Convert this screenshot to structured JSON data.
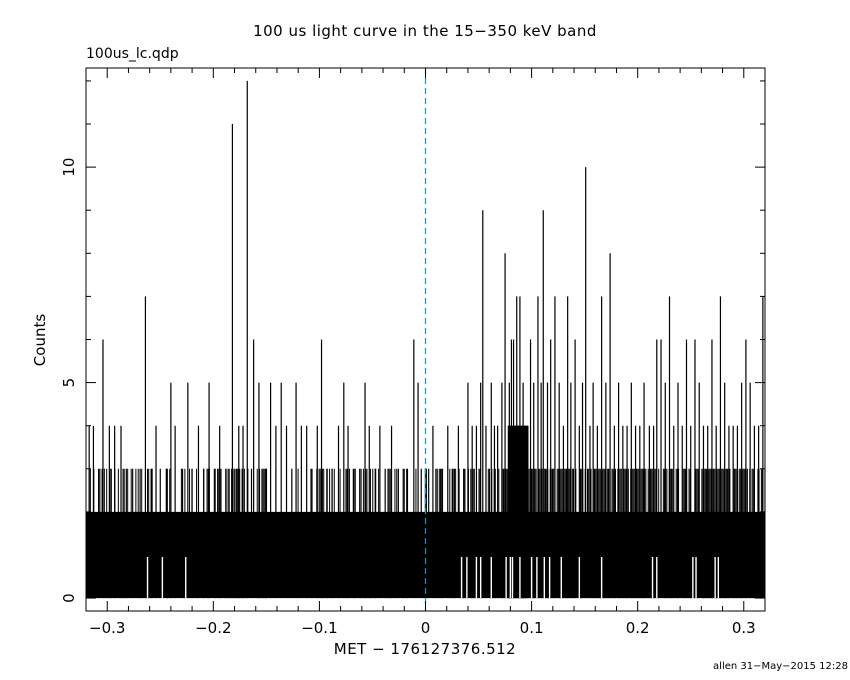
{
  "header": {
    "title": "100 us light curve in the 15−350 keV band",
    "file_label": "100us_lc.qdp"
  },
  "footer": {
    "credit": "allen 31−May−2015 12:28"
  },
  "colors": {
    "data": "#000000",
    "trigger_line": "#1a8fd6",
    "frame": "#000000"
  },
  "chart_data": {
    "type": "histogram",
    "title": "100 us light curve in the 15−350 keV band",
    "xlabel": "MET − 176127376.512",
    "ylabel": "Counts",
    "xlim": [
      -0.32,
      0.32
    ],
    "ylim": [
      -0.3,
      12.3
    ],
    "x_ticks": [
      -0.3,
      -0.2,
      -0.1,
      0,
      0.1,
      0.2,
      0.3
    ],
    "x_tick_labels": [
      "−0.3",
      "−0.2",
      "−0.1",
      "0",
      "0.1",
      "0.2",
      "0.3"
    ],
    "y_ticks": [
      0,
      5,
      10
    ],
    "y_tick_labels": [
      "0",
      "5",
      "10"
    ],
    "bin_width": 0.0001,
    "trigger_line_x": 0,
    "peaks": [
      {
        "x": -0.317,
        "y": 4
      },
      {
        "x": -0.313,
        "y": 4
      },
      {
        "x": -0.307,
        "y": 3
      },
      {
        "x": -0.304,
        "y": 6
      },
      {
        "x": -0.298,
        "y": 4
      },
      {
        "x": -0.293,
        "y": 4
      },
      {
        "x": -0.287,
        "y": 4
      },
      {
        "x": -0.282,
        "y": 3
      },
      {
        "x": -0.276,
        "y": 3
      },
      {
        "x": -0.269,
        "y": 3
      },
      {
        "x": -0.264,
        "y": 7
      },
      {
        "x": -0.258,
        "y": 3
      },
      {
        "x": -0.254,
        "y": 4
      },
      {
        "x": -0.25,
        "y": 3
      },
      {
        "x": -0.244,
        "y": 3
      },
      {
        "x": -0.24,
        "y": 5
      },
      {
        "x": -0.236,
        "y": 4
      },
      {
        "x": -0.229,
        "y": 3
      },
      {
        "x": -0.224,
        "y": 5
      },
      {
        "x": -0.22,
        "y": 3
      },
      {
        "x": -0.214,
        "y": 4
      },
      {
        "x": -0.209,
        "y": 3
      },
      {
        "x": -0.204,
        "y": 5
      },
      {
        "x": -0.199,
        "y": 3
      },
      {
        "x": -0.194,
        "y": 4
      },
      {
        "x": -0.188,
        "y": 3
      },
      {
        "x": -0.182,
        "y": 11
      },
      {
        "x": -0.178,
        "y": 3
      },
      {
        "x": -0.176,
        "y": 4
      },
      {
        "x": -0.172,
        "y": 4
      },
      {
        "x": -0.168,
        "y": 12
      },
      {
        "x": -0.164,
        "y": 3
      },
      {
        "x": -0.162,
        "y": 6
      },
      {
        "x": -0.157,
        "y": 5
      },
      {
        "x": -0.15,
        "y": 3
      },
      {
        "x": -0.146,
        "y": 5
      },
      {
        "x": -0.141,
        "y": 4
      },
      {
        "x": -0.136,
        "y": 5
      },
      {
        "x": -0.131,
        "y": 4
      },
      {
        "x": -0.126,
        "y": 3
      },
      {
        "x": -0.122,
        "y": 5
      },
      {
        "x": -0.117,
        "y": 4
      },
      {
        "x": -0.112,
        "y": 4
      },
      {
        "x": -0.107,
        "y": 3
      },
      {
        "x": -0.102,
        "y": 4
      },
      {
        "x": -0.098,
        "y": 6
      },
      {
        "x": -0.093,
        "y": 3
      },
      {
        "x": -0.088,
        "y": 3
      },
      {
        "x": -0.082,
        "y": 4
      },
      {
        "x": -0.077,
        "y": 5
      },
      {
        "x": -0.073,
        "y": 4
      },
      {
        "x": -0.068,
        "y": 3
      },
      {
        "x": -0.062,
        "y": 3
      },
      {
        "x": -0.057,
        "y": 5
      },
      {
        "x": -0.053,
        "y": 4
      },
      {
        "x": -0.047,
        "y": 3
      },
      {
        "x": -0.043,
        "y": 4
      },
      {
        "x": -0.038,
        "y": 3
      },
      {
        "x": -0.032,
        "y": 4
      },
      {
        "x": -0.027,
        "y": 3
      },
      {
        "x": -0.021,
        "y": 3
      },
      {
        "x": -0.017,
        "y": 3
      },
      {
        "x": -0.011,
        "y": 6
      },
      {
        "x": -0.007,
        "y": 5
      },
      {
        "x": -0.004,
        "y": 3
      },
      {
        "x": 0.003,
        "y": 3
      },
      {
        "x": 0.007,
        "y": 4
      },
      {
        "x": 0.011,
        "y": 3
      },
      {
        "x": 0.016,
        "y": 3
      },
      {
        "x": 0.021,
        "y": 4
      },
      {
        "x": 0.026,
        "y": 3
      },
      {
        "x": 0.031,
        "y": 4
      },
      {
        "x": 0.036,
        "y": 3
      },
      {
        "x": 0.04,
        "y": 5
      },
      {
        "x": 0.044,
        "y": 4
      },
      {
        "x": 0.048,
        "y": 4
      },
      {
        "x": 0.052,
        "y": 5
      },
      {
        "x": 0.054,
        "y": 9
      },
      {
        "x": 0.057,
        "y": 4
      },
      {
        "x": 0.062,
        "y": 5
      },
      {
        "x": 0.065,
        "y": 4
      },
      {
        "x": 0.068,
        "y": 4
      },
      {
        "x": 0.072,
        "y": 5
      },
      {
        "x": 0.075,
        "y": 8
      },
      {
        "x": 0.079,
        "y": 5
      },
      {
        "x": 0.081,
        "y": 6
      },
      {
        "x": 0.083,
        "y": 6
      },
      {
        "x": 0.086,
        "y": 7
      },
      {
        "x": 0.089,
        "y": 7
      },
      {
        "x": 0.092,
        "y": 5
      },
      {
        "x": 0.095,
        "y": 4
      },
      {
        "x": 0.099,
        "y": 6
      },
      {
        "x": 0.102,
        "y": 5
      },
      {
        "x": 0.106,
        "y": 7
      },
      {
        "x": 0.109,
        "y": 5
      },
      {
        "x": 0.111,
        "y": 9
      },
      {
        "x": 0.115,
        "y": 5
      },
      {
        "x": 0.118,
        "y": 6
      },
      {
        "x": 0.122,
        "y": 7
      },
      {
        "x": 0.126,
        "y": 5
      },
      {
        "x": 0.13,
        "y": 4
      },
      {
        "x": 0.134,
        "y": 7
      },
      {
        "x": 0.137,
        "y": 5
      },
      {
        "x": 0.141,
        "y": 6
      },
      {
        "x": 0.145,
        "y": 4
      },
      {
        "x": 0.148,
        "y": 5
      },
      {
        "x": 0.151,
        "y": 10
      },
      {
        "x": 0.155,
        "y": 4
      },
      {
        "x": 0.158,
        "y": 5
      },
      {
        "x": 0.162,
        "y": 4
      },
      {
        "x": 0.166,
        "y": 7
      },
      {
        "x": 0.17,
        "y": 5
      },
      {
        "x": 0.174,
        "y": 8
      },
      {
        "x": 0.178,
        "y": 4
      },
      {
        "x": 0.182,
        "y": 5
      },
      {
        "x": 0.186,
        "y": 4
      },
      {
        "x": 0.19,
        "y": 4
      },
      {
        "x": 0.194,
        "y": 5
      },
      {
        "x": 0.198,
        "y": 4
      },
      {
        "x": 0.202,
        "y": 4
      },
      {
        "x": 0.206,
        "y": 5
      },
      {
        "x": 0.211,
        "y": 4
      },
      {
        "x": 0.215,
        "y": 4
      },
      {
        "x": 0.218,
        "y": 6
      },
      {
        "x": 0.222,
        "y": 6
      },
      {
        "x": 0.226,
        "y": 5
      },
      {
        "x": 0.23,
        "y": 7
      },
      {
        "x": 0.234,
        "y": 4
      },
      {
        "x": 0.238,
        "y": 5
      },
      {
        "x": 0.242,
        "y": 4
      },
      {
        "x": 0.246,
        "y": 6
      },
      {
        "x": 0.25,
        "y": 4
      },
      {
        "x": 0.254,
        "y": 6
      },
      {
        "x": 0.258,
        "y": 5
      },
      {
        "x": 0.262,
        "y": 4
      },
      {
        "x": 0.266,
        "y": 4
      },
      {
        "x": 0.27,
        "y": 6
      },
      {
        "x": 0.274,
        "y": 4
      },
      {
        "x": 0.278,
        "y": 7
      },
      {
        "x": 0.282,
        "y": 5
      },
      {
        "x": 0.286,
        "y": 4
      },
      {
        "x": 0.29,
        "y": 4
      },
      {
        "x": 0.294,
        "y": 4
      },
      {
        "x": 0.298,
        "y": 5
      },
      {
        "x": 0.302,
        "y": 6
      },
      {
        "x": 0.306,
        "y": 5
      },
      {
        "x": 0.31,
        "y": 4
      },
      {
        "x": 0.314,
        "y": 4
      },
      {
        "x": 0.318,
        "y": 7
      }
    ],
    "gaps": [
      -0.262,
      -0.248,
      -0.226,
      0.034,
      0.039,
      0.048,
      0.052,
      0.062,
      0.076,
      0.08,
      0.082,
      0.089,
      0.1,
      0.105,
      0.112,
      0.117,
      0.128,
      0.145,
      0.166,
      0.214,
      0.218,
      0.252,
      0.255,
      0.273,
      0.276
    ],
    "baseline_counts": [
      0,
      1,
      2
    ],
    "grid": false
  }
}
